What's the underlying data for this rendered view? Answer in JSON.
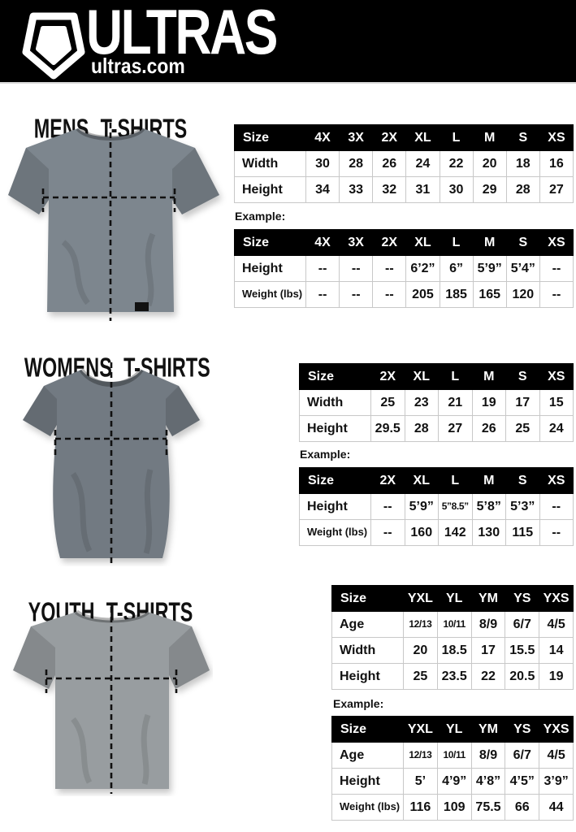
{
  "theme": {
    "header_bg": "#000000",
    "header_text": "#ffffff",
    "table_header_bg": "#000000",
    "table_header_text": "#ffffff",
    "table_border": "#c8c8c8",
    "measure_line_color": "#111111"
  },
  "header": {
    "brand": "ULTRAS",
    "site": "ultras.com",
    "logo_icon": "pentagon-shield-icon"
  },
  "sections": [
    {
      "id": "mens",
      "title": "MENS T-SHIRTS",
      "shirt_color": "#7d868e",
      "example_label": "Example:",
      "size_table": {
        "header": [
          "Size",
          "4X",
          "3X",
          "2X",
          "XL",
          "L",
          "M",
          "S",
          "XS"
        ],
        "rows": [
          {
            "label": "Width",
            "values": [
              "30",
              "28",
              "26",
              "24",
              "22",
              "20",
              "18",
              "16"
            ]
          },
          {
            "label": "Height",
            "values": [
              "34",
              "33",
              "32",
              "31",
              "30",
              "29",
              "28",
              "27"
            ]
          }
        ]
      },
      "example_table": {
        "header": [
          "Size",
          "4X",
          "3X",
          "2X",
          "XL",
          "L",
          "M",
          "S",
          "XS"
        ],
        "rows": [
          {
            "label": "Height",
            "values": [
              "--",
              "--",
              "--",
              "6’2”",
              "6”",
              "5’9”",
              "5’4”",
              "--"
            ]
          },
          {
            "label": "Weight (lbs)",
            "values": [
              "--",
              "--",
              "--",
              "205",
              "185",
              "165",
              "120",
              "--"
            ]
          }
        ]
      }
    },
    {
      "id": "womens",
      "title": "WOMENS T-SHIRTS",
      "shirt_color": "#727a82",
      "example_label": "Example:",
      "size_table": {
        "header": [
          "Size",
          "2X",
          "XL",
          "L",
          "M",
          "S",
          "XS"
        ],
        "rows": [
          {
            "label": "Width",
            "values": [
              "25",
              "23",
              "21",
              "19",
              "17",
              "15"
            ]
          },
          {
            "label": "Height",
            "values": [
              "29.5",
              "28",
              "27",
              "26",
              "25",
              "24"
            ]
          }
        ]
      },
      "example_table": {
        "header": [
          "Size",
          "2X",
          "XL",
          "L",
          "M",
          "S",
          "XS"
        ],
        "rows": [
          {
            "label": "Height",
            "values": [
              "--",
              "5’9”",
              "5”8.5”",
              "5’8”",
              "5’3”",
              "--"
            ]
          },
          {
            "label": "Weight (lbs)",
            "values": [
              "--",
              "160",
              "142",
              "130",
              "115",
              "--"
            ]
          }
        ]
      }
    },
    {
      "id": "youth",
      "title": "YOUTH T-SHIRTS",
      "shirt_color": "#989da0",
      "example_label": "Example:",
      "size_table": {
        "header": [
          "Size",
          "YXL",
          "YL",
          "YM",
          "YS",
          "YXS"
        ],
        "rows": [
          {
            "label": "Age",
            "values": [
              "12/13",
              "10/11",
              "8/9",
              "6/7",
              "4/5"
            ]
          },
          {
            "label": "Width",
            "values": [
              "20",
              "18.5",
              "17",
              "15.5",
              "14"
            ]
          },
          {
            "label": "Height",
            "values": [
              "25",
              "23.5",
              "22",
              "20.5",
              "19"
            ]
          }
        ]
      },
      "example_table": {
        "header": [
          "Size",
          "YXL",
          "YL",
          "YM",
          "YS",
          "YXS"
        ],
        "rows": [
          {
            "label": "Age",
            "values": [
              "12/13",
              "10/11",
              "8/9",
              "6/7",
              "4/5"
            ]
          },
          {
            "label": "Height",
            "values": [
              "5’",
              "4’9”",
              "4’8”",
              "4’5”",
              "3’9”"
            ]
          },
          {
            "label": "Weight (lbs)",
            "values": [
              "116",
              "109",
              "75.5",
              "66",
              "44"
            ]
          }
        ]
      }
    }
  ]
}
